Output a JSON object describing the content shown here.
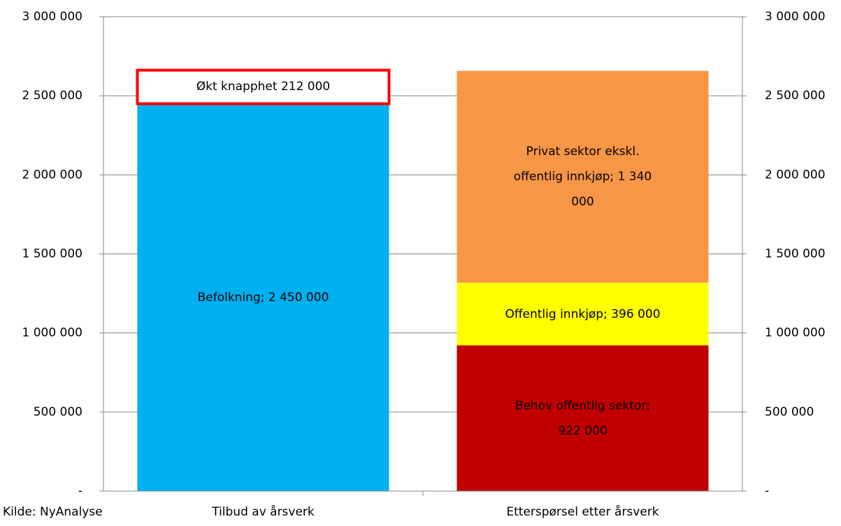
{
  "chart_data": {
    "type": "stacked_bar",
    "source": "Kilde: NyAnalyse",
    "categories": [
      "Tilbud av årsverk",
      "Etterspørsel etter årsverk"
    ],
    "series": [
      {
        "name": "Befolkning",
        "color": "#00b0f0",
        "values": [
          2450000,
          null
        ],
        "value_labels": [
          "Befolkning;  2 450 000",
          null
        ]
      },
      {
        "name": "Økt knapphet",
        "color": "#ffffff",
        "stroke": "#ff0000",
        "values": [
          212000,
          null
        ],
        "value_labels": [
          "Økt knapphet  212 000",
          null
        ]
      },
      {
        "name": "Behov offentlig sektor",
        "color": "#c00000",
        "values": [
          null,
          922000
        ],
        "value_labels": [
          null,
          "Behov offentlig sektor;  922 000"
        ]
      },
      {
        "name": "Offentlig innkjøp",
        "color": "#ffff00",
        "values": [
          null,
          396000
        ],
        "value_labels": [
          null,
          "Offentlig innkjøp; 396 000"
        ]
      },
      {
        "name": "Privat sektor ekskl. offentlig innkjøp",
        "color": "#f79646",
        "values": [
          null,
          1340000
        ],
        "value_labels": [
          null,
          "Privat sektor ekskl. offentlig innkjøp;  1 340 000"
        ]
      }
    ],
    "ylim": [
      0,
      3000000
    ],
    "yticks": [
      {
        "value": 0,
        "label": "-"
      },
      {
        "value": 500000,
        "label": "500 000"
      },
      {
        "value": 1000000,
        "label": "1 000 000"
      },
      {
        "value": 1500000,
        "label": "1 500 000"
      },
      {
        "value": 2000000,
        "label": "2 000 000"
      },
      {
        "value": 2500000,
        "label": "2 500 000"
      },
      {
        "value": 3000000,
        "label": "3 000 000"
      }
    ],
    "y2lim": [
      0,
      3000000
    ],
    "y2ticks": [
      {
        "value": 0,
        "label": "-"
      },
      {
        "value": 500000,
        "label": "500 000"
      },
      {
        "value": 1000000,
        "label": "1 000 000"
      },
      {
        "value": 1500000,
        "label": "1 500 000"
      },
      {
        "value": 2000000,
        "label": "2 000 000"
      },
      {
        "value": 2500000,
        "label": "2 500 000"
      },
      {
        "value": 3000000,
        "label": "3 000 000"
      }
    ],
    "grid": true
  }
}
